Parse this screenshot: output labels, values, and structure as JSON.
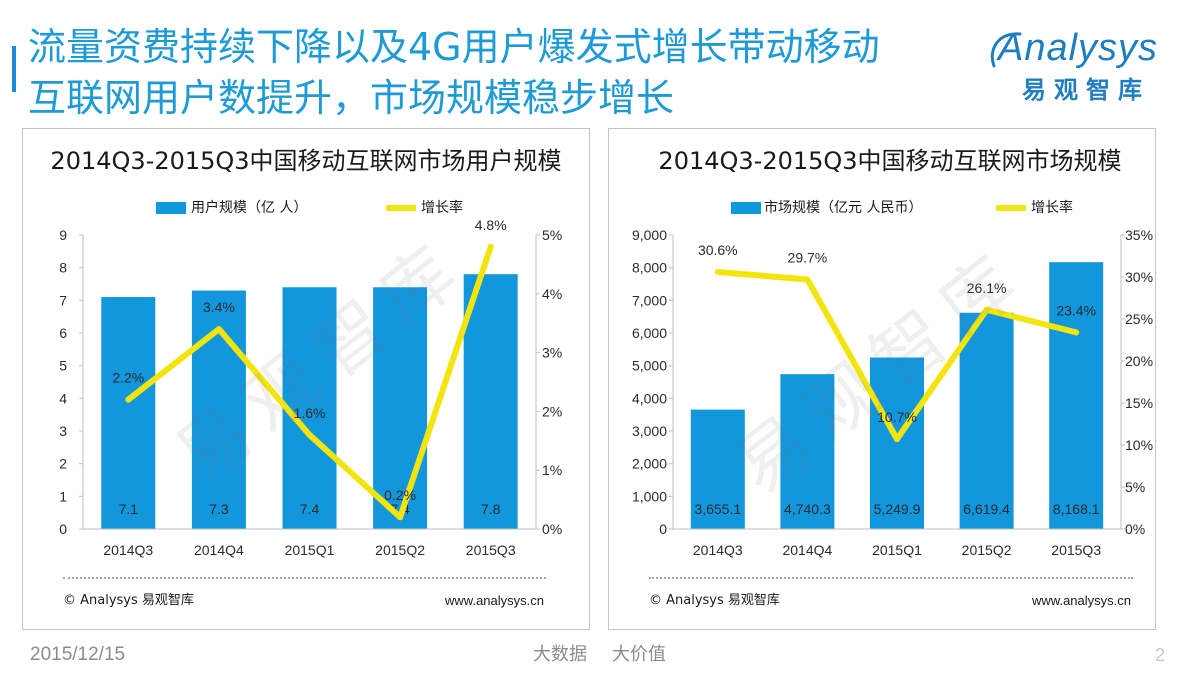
{
  "slide": {
    "title_lines": [
      "流量资费持续下降以及4G用户爆发式增长带动移动",
      "互联网用户数提升，市场规模稳步增长"
    ],
    "logo": {
      "wordmark": "Analysys",
      "name_cn": "易观智库"
    },
    "footer": {
      "date": "2015/12/15",
      "slogan": [
        "大数据",
        "大价值"
      ],
      "page_number": "2"
    }
  },
  "colors": {
    "title": "#1e9ad7",
    "logo": "#1f7ec2",
    "bar": "#1296dc",
    "line": "#f2e40c",
    "axis": "#bfbfbf",
    "muted_text": "#8c8c8c"
  },
  "chart_data": [
    {
      "type": "bar",
      "title": "2014Q3-2015Q3中国移动互联网市场用户规模",
      "categories": [
        "2014Q3",
        "2014Q4",
        "2015Q1",
        "2015Q2",
        "2015Q3"
      ],
      "series": [
        {
          "name": "用户规模（亿 人）",
          "type": "bar",
          "axis": "left",
          "values": [
            7.1,
            7.3,
            7.4,
            7.4,
            7.8
          ],
          "labels": [
            "7.1",
            "7.3",
            "7.4",
            "7.4",
            "7.8"
          ]
        },
        {
          "name": "增长率",
          "type": "line",
          "axis": "right",
          "values": [
            2.2,
            3.4,
            1.6,
            0.2,
            4.8
          ],
          "labels": [
            "2.2%",
            "3.4%",
            "1.6%",
            "0.2%",
            "4.8%"
          ]
        }
      ],
      "y_left": {
        "range": [
          0,
          9
        ],
        "tick_labels": [
          "0",
          "1",
          "2",
          "3",
          "4",
          "5",
          "6",
          "7",
          "8",
          "9"
        ]
      },
      "y_right": {
        "range": [
          0,
          5
        ],
        "tick_labels": [
          "0%",
          "1%",
          "2%",
          "3%",
          "4%",
          "5%"
        ]
      },
      "legend_position": "top",
      "grid": false,
      "watermark": "易观智库",
      "source": "© Analysys 易观智库",
      "website": "www.analysys.cn"
    },
    {
      "type": "bar",
      "title": "2014Q3-2015Q3中国移动互联网市场规模",
      "categories": [
        "2014Q3",
        "2014Q4",
        "2015Q1",
        "2015Q2",
        "2015Q3"
      ],
      "series": [
        {
          "name": "市场规模（亿元 人民币）",
          "type": "bar",
          "axis": "left",
          "values": [
            3655.1,
            4740.3,
            5249.9,
            6619.4,
            8168.1
          ],
          "labels": [
            "3,655.1",
            "4,740.3",
            "5,249.9",
            "6,619.4",
            "8,168.1"
          ]
        },
        {
          "name": "增长率",
          "type": "line",
          "axis": "right",
          "values": [
            30.6,
            29.7,
            10.7,
            26.1,
            23.4
          ],
          "labels": [
            "30.6%",
            "29.7%",
            "10.7%",
            "26.1%",
            "23.4%"
          ]
        }
      ],
      "y_left": {
        "range": [
          0,
          9000
        ],
        "tick_labels": [
          "0",
          "1,000",
          "2,000",
          "3,000",
          "4,000",
          "5,000",
          "6,000",
          "7,000",
          "8,000",
          "9,000"
        ]
      },
      "y_right": {
        "range": [
          0,
          35
        ],
        "tick_labels": [
          "0%",
          "5%",
          "10%",
          "15%",
          "20%",
          "25%",
          "30%",
          "35%"
        ]
      },
      "legend_position": "top",
      "grid": false,
      "watermark": "易观智库",
      "source": "© Analysys 易观智库",
      "website": "www.analysys.cn"
    }
  ]
}
